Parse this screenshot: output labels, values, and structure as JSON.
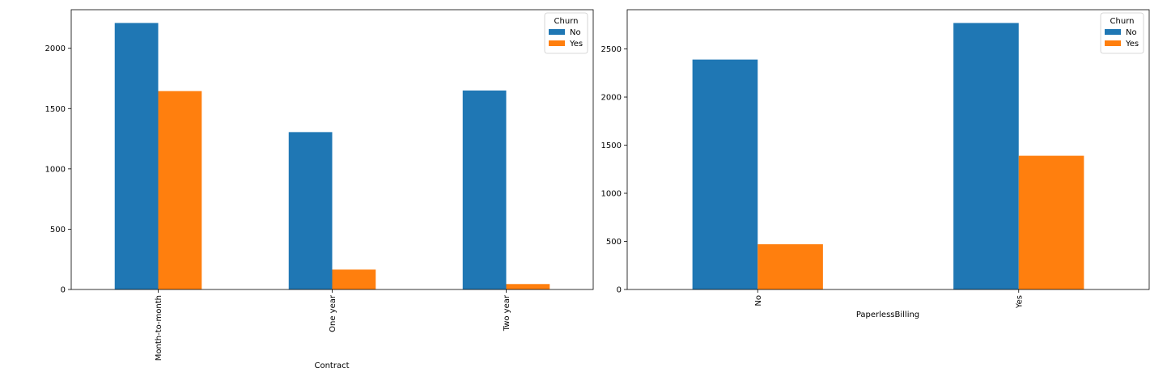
{
  "colors": {
    "No": "#1f77b4",
    "Yes": "#ff7f0e"
  },
  "chart_data": [
    {
      "type": "bar",
      "xlabel": "Contract",
      "ylabel": "",
      "categories": [
        "Month-to-month",
        "One year",
        "Two year"
      ],
      "series": [
        {
          "name": "No",
          "values": [
            2210,
            1305,
            1650
          ]
        },
        {
          "name": "Yes",
          "values": [
            1645,
            165,
            45
          ]
        }
      ],
      "ylim": [
        0,
        2320
      ],
      "yticks": [
        0,
        500,
        1000,
        1500,
        2000
      ],
      "legend": {
        "title": "Churn",
        "placement": "top-right"
      },
      "grid": false
    },
    {
      "type": "bar",
      "xlabel": "PaperlessBilling",
      "ylabel": "",
      "categories": [
        "No",
        "Yes"
      ],
      "series": [
        {
          "name": "No",
          "values": [
            2390,
            2770
          ]
        },
        {
          "name": "Yes",
          "values": [
            470,
            1390
          ]
        }
      ],
      "ylim": [
        0,
        2908
      ],
      "yticks": [
        0,
        500,
        1000,
        1500,
        2000,
        2500
      ],
      "legend": {
        "title": "Churn",
        "placement": "top-right"
      },
      "grid": false
    }
  ]
}
